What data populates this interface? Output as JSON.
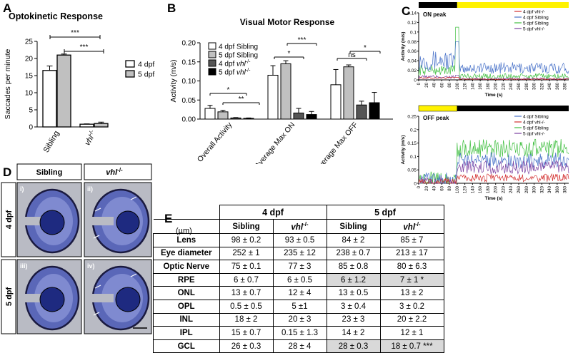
{
  "colors": {
    "white_bar": "#ffffff",
    "light_gray_bar": "#c0c0c0",
    "dark_gray_bar": "#555555",
    "black_bar": "#000000",
    "yellow": "#fff200",
    "blue": "#4a73c9",
    "red": "#d32f2f",
    "green": "#3fbf3f",
    "purple": "#7b3fa0",
    "table_shade": "#d9d9d9"
  },
  "panels": {
    "a": "A",
    "b": "B",
    "c": "C",
    "d": "D",
    "e": "E"
  },
  "chart_data": [
    {
      "id": "A",
      "type": "bar",
      "title": "Optokinetic Response",
      "ylabel": "Saccades per minute",
      "ylim": [
        0,
        25
      ],
      "yticks": [
        0,
        5,
        10,
        15,
        20,
        25
      ],
      "categories": [
        "Sibling",
        "vhl"
      ],
      "category_sup": [
        "",
        "-/-"
      ],
      "series": [
        {
          "name": "4 dpf",
          "values": [
            16.5,
            0.8
          ],
          "errors": [
            1.3,
            0.1
          ]
        },
        {
          "name": "5 dpf",
          "values": [
            21,
            1
          ],
          "errors": [
            0.3,
            0.4
          ]
        }
      ],
      "annotations": [
        "***",
        "***"
      ],
      "legend": {
        "position": "right",
        "labels": [
          "4 dpf",
          "5 dpf"
        ]
      }
    },
    {
      "id": "B",
      "type": "bar",
      "title": "Visual Motor Response",
      "ylabel": "Activity (m/s)",
      "ylim": [
        0,
        0.2
      ],
      "yticks": [
        "0.00",
        "0.05",
        "0.10",
        "0.15",
        "0.20"
      ],
      "categories": [
        "Overall Activity",
        "Average Max ON",
        "Average Max OFF"
      ],
      "series": [
        {
          "name": "4 dpf Sibling",
          "values": [
            0.028,
            0.115,
            0.09
          ],
          "errors": [
            0.008,
            0.025,
            0.04
          ]
        },
        {
          "name": "5 dpf Sibling",
          "values": [
            0.019,
            0.145,
            0.137
          ],
          "errors": [
            0.004,
            0.008,
            0.005
          ]
        },
        {
          "name": "4 dpf vhl-/-",
          "values": [
            0.003,
            0.016,
            0.037
          ],
          "errors": [
            0.001,
            0.012,
            0.01
          ]
        },
        {
          "name": "5 dpf vhl-/-",
          "values": [
            0.002,
            0.012,
            0.043
          ],
          "errors": [
            0.001,
            0.008,
            0.027
          ]
        }
      ],
      "legend_labels": [
        "4 dpf Sibling",
        "5 dpf Sibling",
        "4 dpf vhl",
        "5 dpf vhl"
      ],
      "legend_sup": "-/-",
      "annotations": [
        "*",
        "**",
        "*",
        "***",
        "ns",
        "*"
      ]
    },
    {
      "id": "C1",
      "type": "line",
      "title": "ON peak",
      "xlabel": "Time (s)",
      "ylabel": "Activity (m/s)",
      "ylim": [
        0,
        0.14
      ],
      "yticks": [
        "0",
        "0.02",
        "0.04",
        "0.06",
        "0.08",
        "0.1",
        "0.12",
        "0.14"
      ],
      "xlim": [
        0,
        390
      ],
      "xticks": [
        0,
        20,
        40,
        60,
        80,
        100,
        120,
        140,
        160,
        180,
        200,
        220,
        240,
        260,
        280,
        300,
        320,
        340,
        360,
        380
      ],
      "legend": [
        "4 dpf vhl-/-",
        "4 dpf Sibling",
        "5 dpf Sibling",
        "5 dpf vhl-/-"
      ],
      "light_bar": "dark 0-100 s, light 100-390 s",
      "series": [
        {
          "name": "4 dpf vhl-/-",
          "baseline": 0.002,
          "noise": 0.003,
          "peak": 0.005
        },
        {
          "name": "4 dpf Sibling",
          "baseline": 0.02,
          "noise": 0.03,
          "peak": 0.08
        },
        {
          "name": "5 dpf Sibling",
          "baseline": 0.01,
          "noise": 0.015,
          "peak": 0.11
        },
        {
          "name": "5 dpf vhl-/-",
          "baseline": 0.003,
          "noise": 0.005,
          "peak": 0.01
        }
      ]
    },
    {
      "id": "C2",
      "type": "line",
      "title": "OFF peak",
      "xlabel": "Time (s)",
      "ylabel": "Activity (m/s)",
      "ylim": [
        0,
        0.25
      ],
      "yticks": [
        "0",
        "0.05",
        "0.1",
        "0.15",
        "0.2",
        "0.25"
      ],
      "xlim": [
        0,
        390
      ],
      "xticks": [
        0,
        20,
        40,
        60,
        80,
        100,
        120,
        140,
        160,
        180,
        200,
        220,
        240,
        260,
        280,
        300,
        320,
        340,
        360,
        380
      ],
      "legend": [
        "4 dpf Sibling",
        "4 dpf vhl-/-",
        "5 dpf Sibling",
        "5 dpf vhl-/-"
      ],
      "light_bar": "light 0-100 s, dark 100-390 s",
      "series": [
        {
          "name": "4 dpf Sibling",
          "pre": 0.01,
          "post": 0.085,
          "noise": 0.03
        },
        {
          "name": "4 dpf vhl-/-",
          "pre": 0.003,
          "post": 0.02,
          "noise": 0.015
        },
        {
          "name": "5 dpf Sibling",
          "pre": 0.01,
          "post": 0.13,
          "noise": 0.035
        },
        {
          "name": "5 dpf vhl-/-",
          "pre": 0.005,
          "post": 0.06,
          "noise": 0.025
        }
      ]
    }
  ],
  "panel_d": {
    "col_headers": [
      "Sibling",
      "vhl"
    ],
    "col_sup": [
      "",
      "-/-"
    ],
    "row_headers": [
      "4 dpf",
      "5 dpf"
    ],
    "sublabels": [
      "i)",
      "ii)",
      "iii)",
      "iv)"
    ]
  },
  "table": {
    "unit": "(µm)",
    "group_headers": [
      "4 dpf",
      "5 dpf"
    ],
    "sub_headers": [
      "Sibling",
      "vhl-/-",
      "Sibling",
      "vhl-/-"
    ],
    "rows": [
      {
        "label": "Lens",
        "values": [
          "98 ± 0.2",
          "93 ± 0.5",
          "84 ± 2",
          "85 ± 7"
        ]
      },
      {
        "label": "Eye diameter",
        "values": [
          "252 ± 1",
          "235 ± 12",
          "238 ± 0.7",
          "213 ± 17"
        ]
      },
      {
        "label": "Optic Nerve",
        "values": [
          "75 ± 0.1",
          "77 ± 3",
          "85 ± 0.8",
          "80 ± 6.3"
        ]
      },
      {
        "label": "RPE",
        "values": [
          "6 ± 0.7",
          "6 ± 0.5",
          "6 ± 1.2",
          "7 ± 1 *"
        ]
      },
      {
        "label": "ONL",
        "values": [
          "13 ± 0.7",
          "12 ± 4",
          "13 ± 0.5",
          "13 ± 2"
        ]
      },
      {
        "label": "OPL",
        "values": [
          "0.5 ± 0.5",
          "5 ±1",
          "3 ± 0.4",
          "3 ± 0.2"
        ]
      },
      {
        "label": "INL",
        "values": [
          "18 ± 2",
          "20 ± 3",
          "23 ± 3",
          "20 ± 2.2"
        ]
      },
      {
        "label": "IPL",
        "values": [
          "15 ± 0.7",
          "0.15 ± 1.3",
          "14 ± 2",
          "12 ± 1"
        ]
      },
      {
        "label": "GCL",
        "values": [
          "26 ± 0.3",
          "28 ± 4",
          "28 ± 0.3",
          "18 ± 0.7 ***"
        ]
      }
    ],
    "shaded": [
      [
        3,
        2
      ],
      [
        3,
        3
      ],
      [
        8,
        2
      ],
      [
        8,
        3
      ]
    ]
  }
}
